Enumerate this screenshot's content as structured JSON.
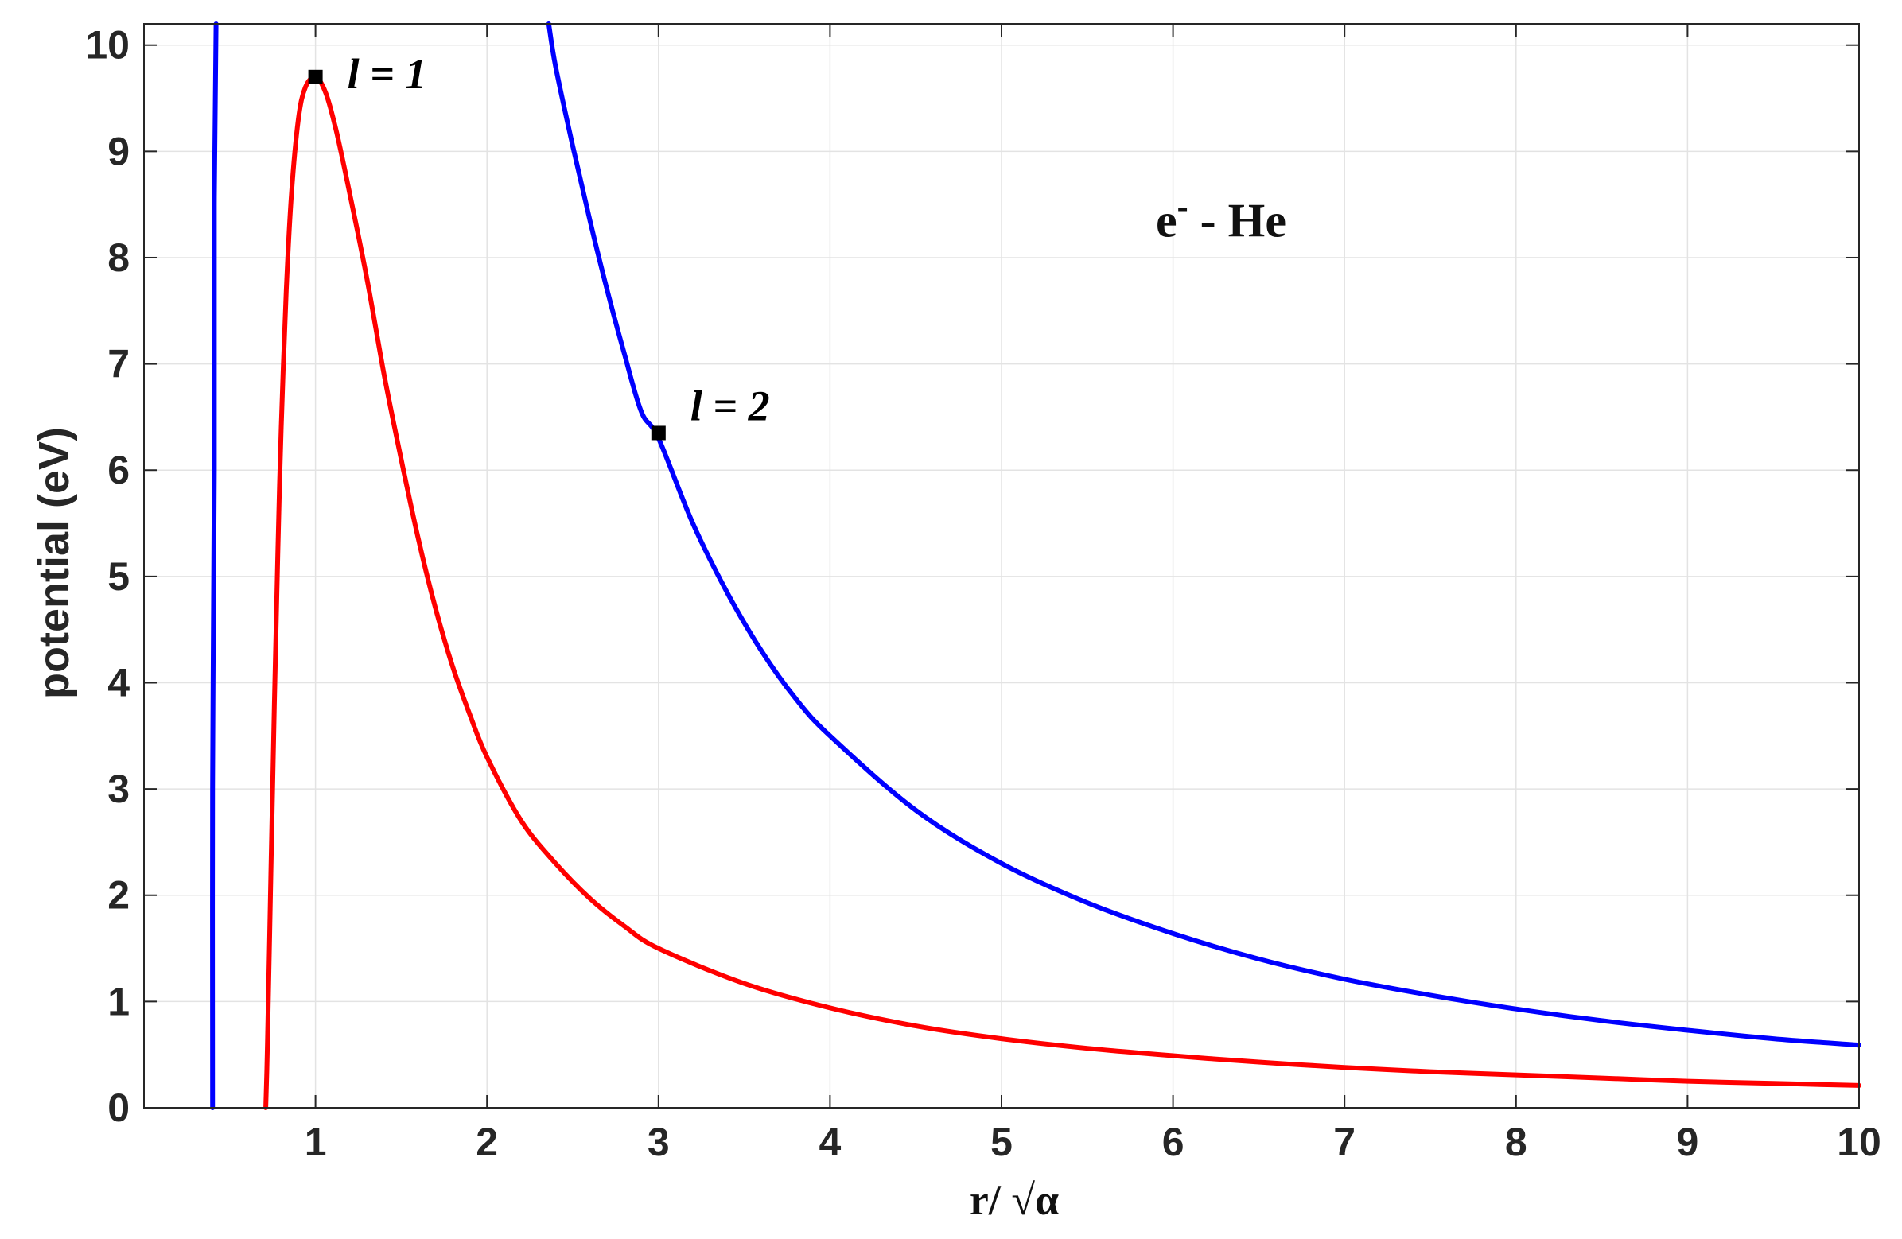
{
  "chart_data": {
    "type": "line",
    "xlabel": "r/ √α",
    "ylabel": "potential (eV)",
    "xlim": [
      0.0,
      10.0
    ],
    "ylim": [
      0,
      10.2
    ],
    "xticks": [
      1,
      2,
      3,
      4,
      5,
      6,
      7,
      8,
      9,
      10
    ],
    "yticks": [
      0,
      1,
      2,
      3,
      4,
      5,
      6,
      7,
      8,
      9,
      10
    ],
    "grid": true,
    "text_annotation": {
      "base": "e",
      "superscript": "-",
      "rest": " - He",
      "x": 5.9,
      "y": 8.2
    },
    "series": [
      {
        "color": "#ff0000",
        "x": [
          0.71,
          0.72,
          0.74,
          0.76,
          0.78,
          0.8,
          0.83,
          0.86,
          0.9,
          0.94,
          1.0,
          1.06,
          1.12,
          1.2,
          1.3,
          1.4,
          1.5,
          1.6,
          1.7,
          1.8,
          1.9,
          2.0,
          2.2,
          2.4,
          2.6,
          2.8,
          3.0,
          3.5,
          4.0,
          4.5,
          5.0,
          5.5,
          6.0,
          6.5,
          7.0,
          7.5,
          8.0,
          8.5,
          9.0,
          9.5,
          10.0
        ],
        "y": [
          0.0,
          0.6,
          2.2,
          3.8,
          5.2,
          6.4,
          7.7,
          8.6,
          9.3,
          9.6,
          9.7,
          9.55,
          9.2,
          8.6,
          7.8,
          6.9,
          6.1,
          5.35,
          4.7,
          4.15,
          3.7,
          3.3,
          2.7,
          2.3,
          1.97,
          1.71,
          1.5,
          1.17,
          0.94,
          0.77,
          0.65,
          0.56,
          0.49,
          0.43,
          0.38,
          0.34,
          0.31,
          0.28,
          0.25,
          0.23,
          0.21
        ]
      },
      {
        "color": "#0000ff",
        "x": [
          0.4,
          0.4,
          0.41,
          0.41,
          0.42
        ],
        "y": [
          0.0,
          3.0,
          6.0,
          8.5,
          10.2
        ]
      },
      {
        "color": "#0000ff",
        "x": [
          2.36,
          2.4,
          2.5,
          2.6,
          2.7,
          2.8,
          2.9,
          3.0,
          3.2,
          3.4,
          3.6,
          3.8,
          4.0,
          4.5,
          5.0,
          5.5,
          6.0,
          6.5,
          7.0,
          7.5,
          8.0,
          8.5,
          9.0,
          9.5,
          10.0
        ],
        "y": [
          10.2,
          9.8,
          9.05,
          8.35,
          7.7,
          7.1,
          6.55,
          6.3,
          5.5,
          4.85,
          4.3,
          3.85,
          3.5,
          2.8,
          2.3,
          1.93,
          1.64,
          1.4,
          1.21,
          1.06,
          0.93,
          0.82,
          0.73,
          0.65,
          0.59
        ]
      }
    ],
    "markers": [
      {
        "x": 1.0,
        "y": 9.7,
        "label": "l = 1"
      },
      {
        "x": 3.0,
        "y": 6.35,
        "label": "l = 2"
      }
    ]
  }
}
